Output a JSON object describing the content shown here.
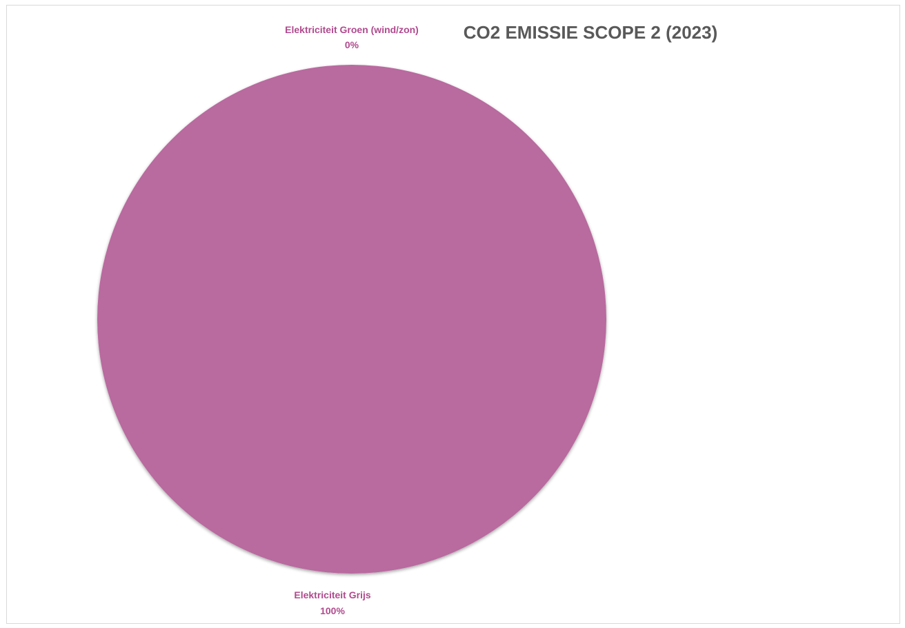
{
  "chart_data": {
    "type": "pie",
    "title": "CO2 EMISSIE SCOPE 2 (2023)",
    "categories": [
      "Elektriciteit Groen (wind/zon)",
      "Elektriciteit Grijs"
    ],
    "values": [
      0,
      100
    ],
    "labels": [
      "0%",
      "100%"
    ],
    "colors": [
      "#b96b9f",
      "#b96b9f"
    ],
    "label_color": "#b04a8e",
    "title_color": "#595959",
    "legend": "none"
  }
}
